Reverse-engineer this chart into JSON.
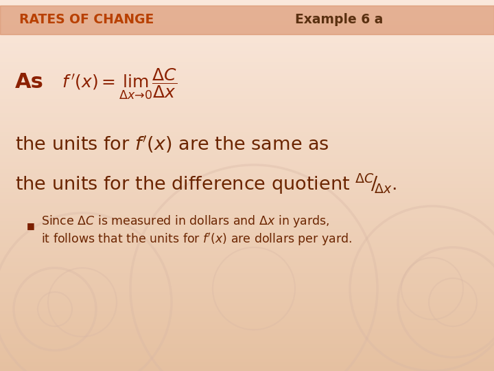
{
  "bg_color_top": "#fae8dc",
  "bg_color_bottom": "#e8c8b0",
  "header_bar_color": "#d4845a",
  "header_text": "RATES OF CHANGE",
  "header_text_color": "#b84000",
  "example_text": "Example 6 a",
  "example_text_color": "#5a3010",
  "title_color": "#8B2000",
  "body_color": "#6B2500",
  "bullet_color": "#7B2000",
  "figwidth": 7.2,
  "figheight": 5.4,
  "dpi": 100
}
